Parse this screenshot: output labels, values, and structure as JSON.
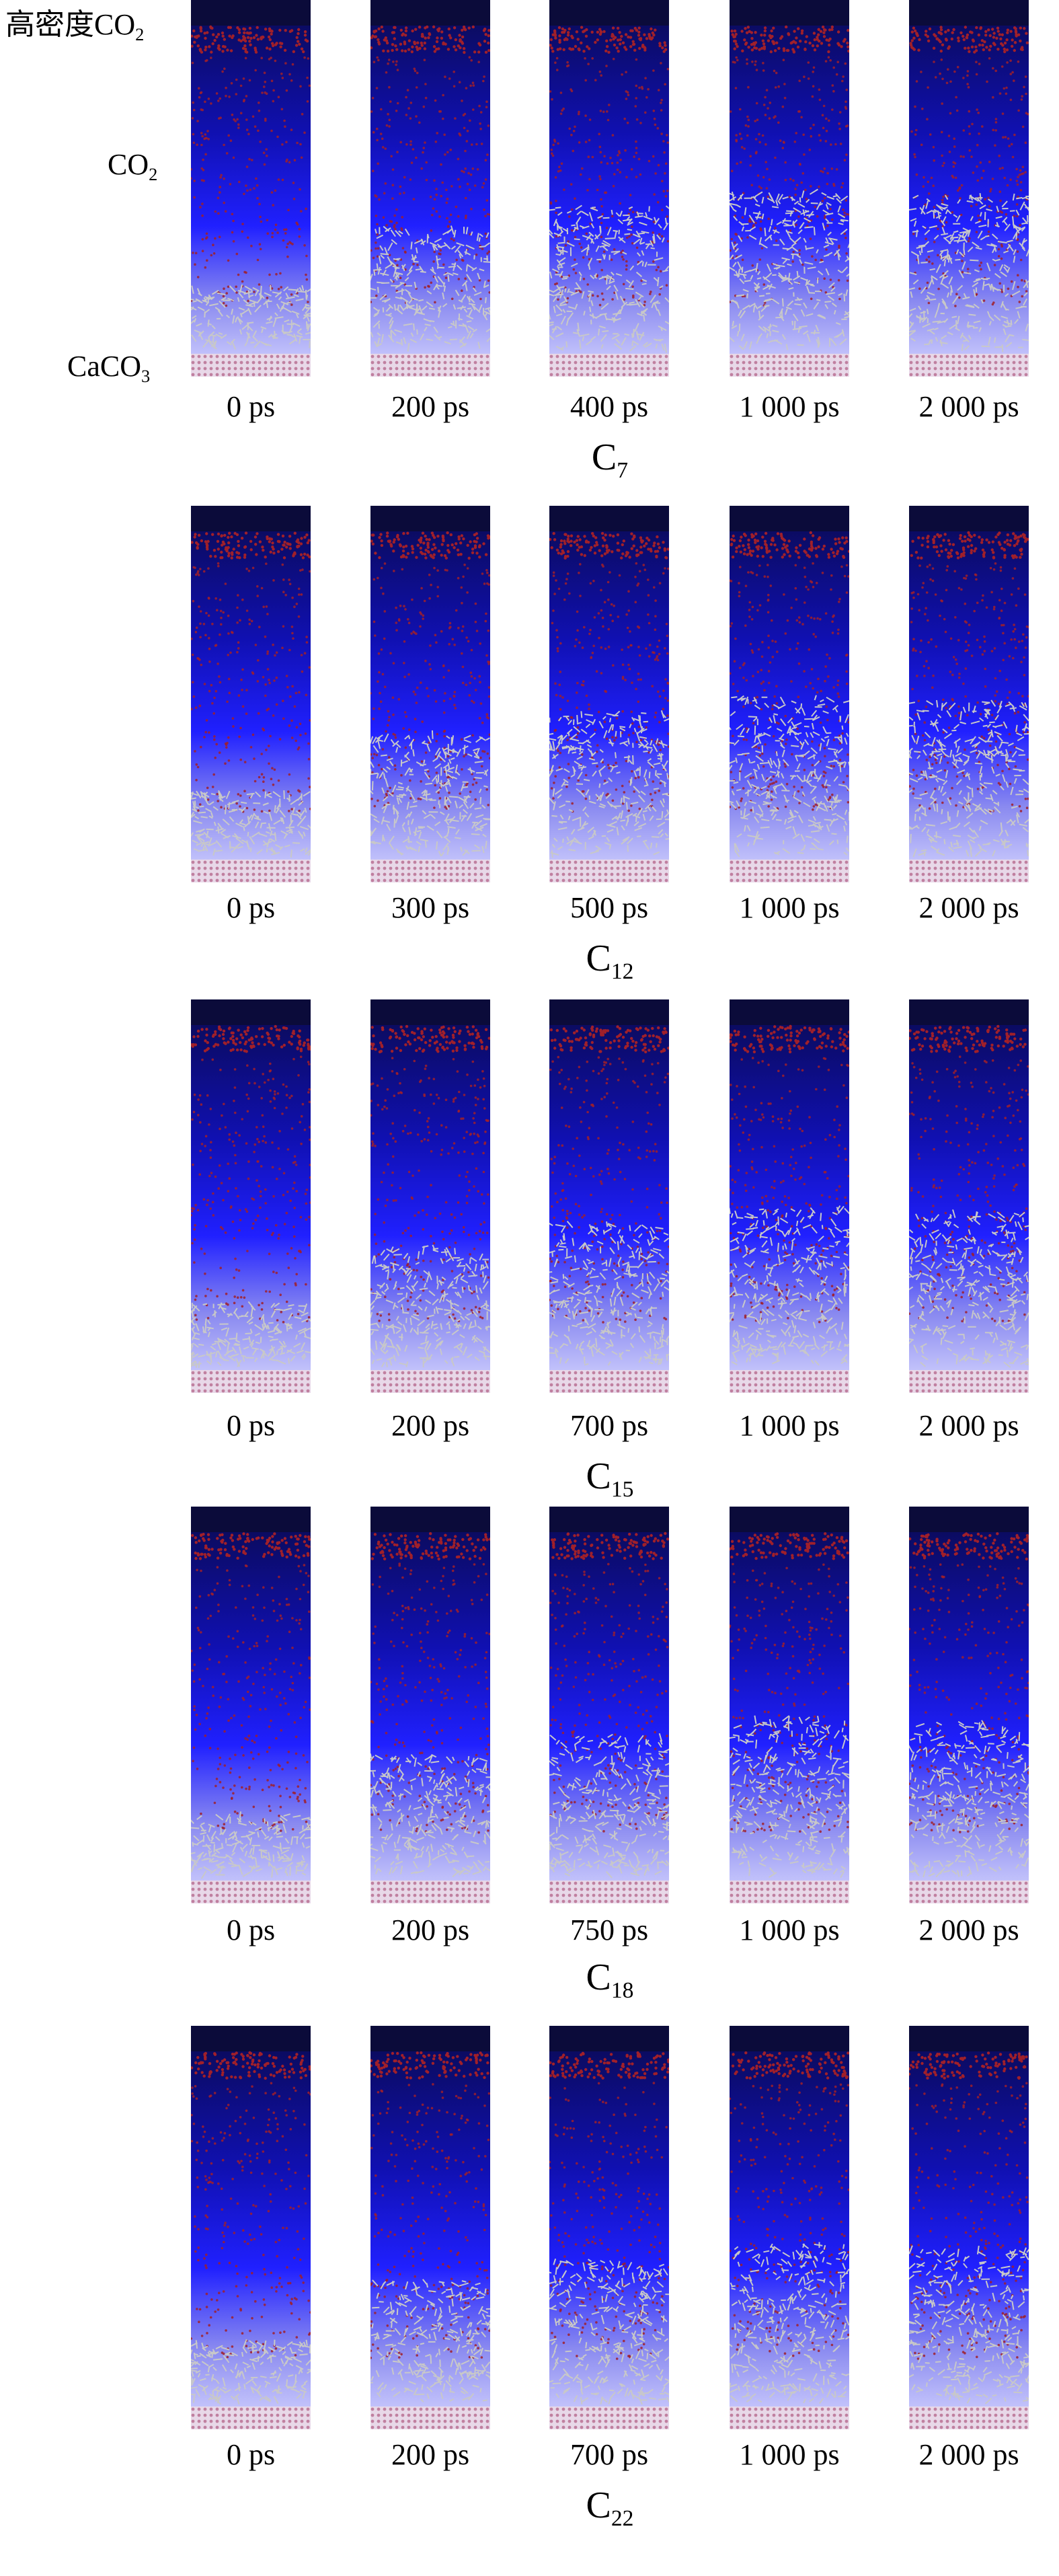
{
  "side_labels": {
    "dense_co2": {
      "prefix": "高密度CO",
      "sub": "2"
    },
    "co2": {
      "prefix": "CO",
      "sub": "2"
    },
    "caco3": {
      "prefix": "CaCO",
      "sub": "3"
    }
  },
  "rows": [
    {
      "system": {
        "base": "C",
        "sub": "7"
      },
      "times": [
        "0 ps",
        "200 ps",
        "400 ps",
        "1 000 ps",
        "2 000 ps"
      ]
    },
    {
      "system": {
        "base": "C",
        "sub": "12"
      },
      "times": [
        "0 ps",
        "300 ps",
        "500 ps",
        "1 000 ps",
        "2 000 ps"
      ]
    },
    {
      "system": {
        "base": "C",
        "sub": "15"
      },
      "times": [
        "0 ps",
        "200 ps",
        "700 ps",
        "1 000 ps",
        "2 000 ps"
      ]
    },
    {
      "system": {
        "base": "C",
        "sub": "18"
      },
      "times": [
        "0 ps",
        "200 ps",
        "750 ps",
        "1 000 ps",
        "2 000 ps"
      ]
    },
    {
      "system": {
        "base": "C",
        "sub": "22"
      },
      "times": [
        "0 ps",
        "200 ps",
        "700 ps",
        "1 000 ps",
        "2 000 ps"
      ]
    }
  ],
  "colors": {
    "top_band": "#0b0b3a",
    "co2_red": "#a0202a",
    "co2_blue": "#1a1aff",
    "oil_gray": "#c8c8c8",
    "caco3_pink": "#c080a0"
  }
}
